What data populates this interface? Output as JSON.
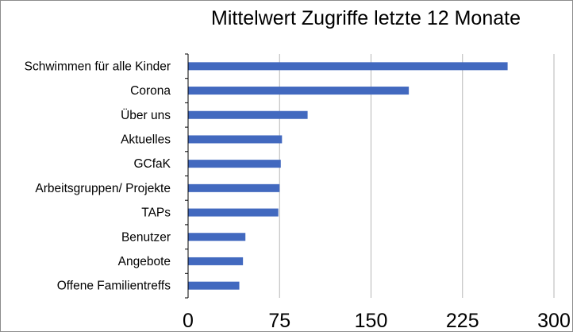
{
  "chart_data": {
    "type": "bar",
    "orientation": "horizontal",
    "title": "Mittelwert Zugriffe letzte 12 Monate",
    "categories": [
      "Schwimmen für alle Kinder",
      "Corona",
      "Über uns",
      "Aktuelles",
      "GCfaK",
      "Arbeitsgruppen/ Projekte",
      "TAPs",
      "Benutzer",
      "Angebote",
      "Offene Familientreffs"
    ],
    "values": [
      262,
      181,
      98,
      77,
      76,
      75,
      74,
      47,
      45,
      42
    ],
    "xlim": [
      0,
      300
    ],
    "xticks": [
      0,
      75,
      150,
      225,
      300
    ],
    "xtick_labels": [
      "0",
      "75",
      "150",
      "225",
      "300"
    ],
    "grid": true,
    "legend": "none",
    "bar_color": "#4269bf",
    "grid_color": "#b5b5b5"
  }
}
